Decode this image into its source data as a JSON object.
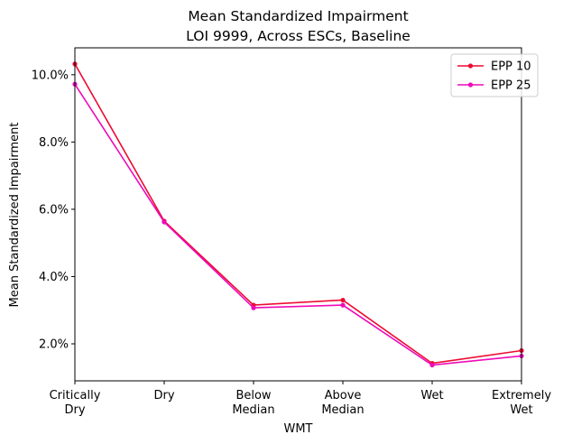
{
  "chart_data": {
    "type": "line",
    "title": [
      "Mean Standardized Impairment",
      "LOI 9999, Across ESCs, Baseline"
    ],
    "xlabel": "WMT",
    "ylabel": "Mean Standardized Impairment",
    "categories": [
      [
        "Critically",
        "Dry"
      ],
      [
        "Dry"
      ],
      [
        "Below",
        "Median"
      ],
      [
        "Above",
        "Median"
      ],
      [
        "Wet"
      ],
      [
        "Extremely",
        "Wet"
      ]
    ],
    "ylim": [
      0.9,
      10.8
    ],
    "yticks": [
      2.0,
      4.0,
      6.0,
      8.0,
      10.0
    ],
    "ytick_labels": [
      "2.0%",
      "4.0%",
      "6.0%",
      "8.0%",
      "10.0%"
    ],
    "grid": false,
    "legend_position": "top-right",
    "series": [
      {
        "name": "EPP 10",
        "color": "#ee0a32",
        "values": [
          10.32,
          5.65,
          3.15,
          3.3,
          1.42,
          1.8
        ]
      },
      {
        "name": "EPP 25",
        "color": "#ee0ab9",
        "values": [
          9.72,
          5.62,
          3.07,
          3.15,
          1.37,
          1.64
        ]
      }
    ]
  }
}
